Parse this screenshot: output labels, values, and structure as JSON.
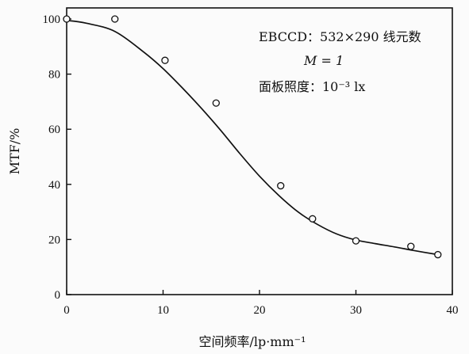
{
  "chart_data": {
    "type": "scatter",
    "xlabel": "空间频率/lp·mm⁻¹",
    "ylabel": "MTF/%",
    "xlim": [
      0,
      40
    ],
    "ylim": [
      0,
      100
    ],
    "xticks": [
      0,
      10,
      20,
      30,
      40
    ],
    "yticks": [
      0,
      20,
      40,
      60,
      80,
      100
    ],
    "grid": false,
    "annotations": [
      "EBCCD：532×290 线元数",
      "M = 1",
      "面板照度：10⁻³ lx"
    ],
    "series": [
      {
        "kind": "points",
        "marker": "open-circle",
        "x": [
          0,
          5,
          10.2,
          15.5,
          22.2,
          25.5,
          30,
          35.7,
          38.5
        ],
        "y": [
          100,
          100,
          85,
          69.5,
          39.5,
          27.5,
          19.5,
          17.5,
          14.5
        ]
      },
      {
        "kind": "fit-curve",
        "x": [
          0,
          2,
          5,
          8,
          10,
          12,
          14,
          16,
          18,
          20,
          22,
          24,
          26,
          28,
          30,
          32,
          34,
          36,
          38.5
        ],
        "y": [
          99.5,
          98.5,
          95.5,
          88,
          82,
          75,
          67.5,
          59.5,
          51,
          43,
          36,
          30,
          25.5,
          22,
          19.8,
          18.5,
          17.3,
          16,
          14.5
        ]
      }
    ]
  }
}
